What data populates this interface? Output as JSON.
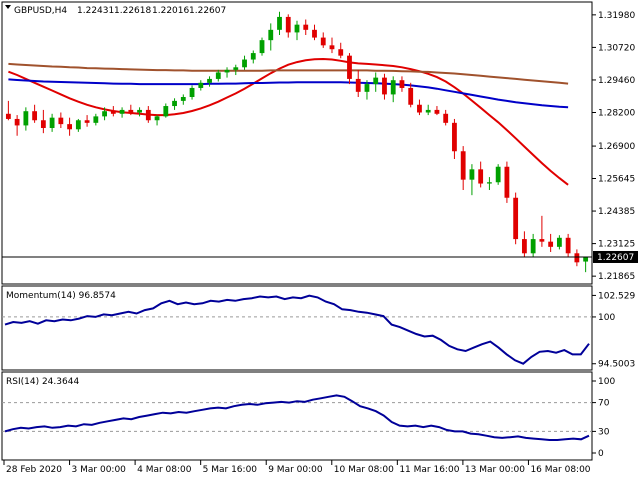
{
  "window": {
    "symbol_label": "GBPUSD,H4",
    "ohlc": {
      "open": "1.22431",
      "high": "1.22618",
      "low": "1.22016",
      "close": "1.22607"
    }
  },
  "colors": {
    "background": "#ffffff",
    "bull_candle": "#00a000",
    "bear_candle": "#e00000",
    "sma_fast": "#e00000",
    "sma_mid": "#0000c8",
    "sma_slow": "#a0522d",
    "oscillator": "#000099",
    "grid_level": "#9a9a9a",
    "price_line": "#000000",
    "price_tag_bg": "#000000",
    "price_tag_fg": "#ffffff"
  },
  "chart_data": [
    {
      "type": "candlestick",
      "ylim": [
        1.216,
        1.324
      ],
      "y_ticks": [
        "1.31980",
        "1.30720",
        "1.29460",
        "1.28200",
        "1.26900",
        "1.25645",
        "1.24385",
        "1.23125",
        "1.21865"
      ],
      "current_price_label": "1.22607",
      "current_price": 1.22607,
      "candles": [
        [
          1.2815,
          1.2865,
          1.279,
          1.2795
        ],
        [
          1.2795,
          1.281,
          1.273,
          1.277
        ],
        [
          1.277,
          1.284,
          1.275,
          1.2825
        ],
        [
          1.2825,
          1.285,
          1.278,
          1.279
        ],
        [
          1.279,
          1.283,
          1.274,
          1.276
        ],
        [
          1.276,
          1.2815,
          1.2745,
          1.28
        ],
        [
          1.28,
          1.282,
          1.276,
          1.2775
        ],
        [
          1.2775,
          1.28,
          1.273,
          1.2755
        ],
        [
          1.2755,
          1.2795,
          1.2745,
          1.279
        ],
        [
          1.279,
          1.281,
          1.2765,
          1.278
        ],
        [
          1.278,
          1.2815,
          1.277,
          1.2805
        ],
        [
          1.2805,
          1.284,
          1.279,
          1.2825
        ],
        [
          1.2825,
          1.2845,
          1.2805,
          1.2815
        ],
        [
          1.2815,
          1.284,
          1.28,
          1.283
        ],
        [
          1.283,
          1.285,
          1.281,
          1.282
        ],
        [
          1.282,
          1.284,
          1.2805,
          1.283
        ],
        [
          1.283,
          1.2845,
          1.278,
          1.279
        ],
        [
          1.279,
          1.281,
          1.277,
          1.2805
        ],
        [
          1.2805,
          1.2855,
          1.28,
          1.2845
        ],
        [
          1.2845,
          1.2875,
          1.283,
          1.2865
        ],
        [
          1.2865,
          1.289,
          1.285,
          1.288
        ],
        [
          1.288,
          1.2925,
          1.287,
          1.2915
        ],
        [
          1.2915,
          1.2945,
          1.2905,
          1.2935
        ],
        [
          1.2935,
          1.296,
          1.292,
          1.295
        ],
        [
          1.295,
          1.2985,
          1.294,
          1.2975
        ],
        [
          1.2975,
          1.2995,
          1.2955,
          1.2985
        ],
        [
          1.2985,
          1.3005,
          1.2965,
          1.2995
        ],
        [
          1.2995,
          1.304,
          1.2985,
          1.3025
        ],
        [
          1.3025,
          1.306,
          1.301,
          1.305
        ],
        [
          1.305,
          1.311,
          1.304,
          1.31
        ],
        [
          1.31,
          1.3165,
          1.306,
          1.314
        ],
        [
          1.314,
          1.321,
          1.312,
          1.319
        ],
        [
          1.319,
          1.32,
          1.311,
          1.313
        ],
        [
          1.313,
          1.3175,
          1.31,
          1.316
        ],
        [
          1.316,
          1.318,
          1.312,
          1.314
        ],
        [
          1.314,
          1.316,
          1.31,
          1.311
        ],
        [
          1.311,
          1.313,
          1.307,
          1.308
        ],
        [
          1.308,
          1.311,
          1.305,
          1.3065
        ],
        [
          1.3065,
          1.309,
          1.303,
          1.304
        ],
        [
          1.304,
          1.305,
          1.293,
          1.295
        ],
        [
          1.295,
          1.2985,
          1.288,
          1.29
        ],
        [
          1.29,
          1.2945,
          1.287,
          1.293
        ],
        [
          1.293,
          1.2975,
          1.29,
          1.2955
        ],
        [
          1.2955,
          1.297,
          1.287,
          1.289
        ],
        [
          1.289,
          1.296,
          1.286,
          1.2945
        ],
        [
          1.2945,
          1.296,
          1.29,
          1.2915
        ],
        [
          1.2915,
          1.2935,
          1.284,
          1.285
        ],
        [
          1.285,
          1.287,
          1.281,
          1.282
        ],
        [
          1.282,
          1.285,
          1.281,
          1.283
        ],
        [
          1.283,
          1.2845,
          1.281,
          1.2815
        ],
        [
          1.2815,
          1.283,
          1.277,
          1.278
        ],
        [
          1.278,
          1.2795,
          1.264,
          1.267
        ],
        [
          1.267,
          1.269,
          1.252,
          1.256
        ],
        [
          1.256,
          1.262,
          1.25,
          1.26
        ],
        [
          1.26,
          1.263,
          1.253,
          1.2545
        ],
        [
          1.2545,
          1.257,
          1.252,
          1.255
        ],
        [
          1.255,
          1.262,
          1.254,
          1.261
        ],
        [
          1.261,
          1.263,
          1.247,
          1.249
        ],
        [
          1.249,
          1.251,
          1.231,
          1.233
        ],
        [
          1.233,
          1.236,
          1.226,
          1.2275
        ],
        [
          1.2275,
          1.235,
          1.226,
          1.233
        ],
        [
          1.233,
          1.242,
          1.23,
          1.232
        ],
        [
          1.232,
          1.235,
          1.228,
          1.23
        ],
        [
          1.23,
          1.2345,
          1.229,
          1.2335
        ],
        [
          1.2335,
          1.235,
          1.226,
          1.2275
        ],
        [
          1.2275,
          1.229,
          1.2225,
          1.224
        ],
        [
          1.2243,
          1.2262,
          1.2202,
          1.2261
        ]
      ],
      "series": [
        {
          "values": [
            1.2978,
            1.2965,
            1.295,
            1.2935,
            1.292,
            1.2905,
            1.289,
            1.2875,
            1.2862,
            1.285,
            1.284,
            1.2832,
            1.2826,
            1.2821,
            1.2818,
            1.2815,
            1.2812,
            1.281,
            1.281,
            1.2813,
            1.2818,
            1.2826,
            1.2836,
            1.2848,
            1.2862,
            1.2878,
            1.2894,
            1.2912,
            1.2932,
            1.2952,
            1.2972,
            1.299,
            1.3005,
            1.3015,
            1.3022,
            1.3026,
            1.3027,
            1.3025,
            1.302,
            1.3014,
            1.301,
            1.3008,
            1.3006,
            1.3003,
            1.3,
            1.2995,
            1.2988,
            1.298,
            1.297,
            1.2957,
            1.294,
            1.2918,
            1.2893,
            1.2866,
            1.2838,
            1.281,
            1.2782,
            1.2752,
            1.272,
            1.2688,
            1.2656,
            1.2624,
            1.2594,
            1.2566,
            1.254
          ]
        },
        {
          "values": [
            1.2948,
            1.2946,
            1.2944,
            1.2942,
            1.294,
            1.2939,
            1.2938,
            1.2937,
            1.2936,
            1.2935,
            1.2934,
            1.2933,
            1.2932,
            1.2931,
            1.2931,
            1.293,
            1.293,
            1.293,
            1.293,
            1.293,
            1.293,
            1.293,
            1.293,
            1.2931,
            1.2931,
            1.2932,
            1.2932,
            1.2933,
            1.2934,
            1.2934,
            1.2935,
            1.2936,
            1.2936,
            1.2937,
            1.2937,
            1.2937,
            1.2937,
            1.2937,
            1.2937,
            1.2936,
            1.2935,
            1.2934,
            1.2933,
            1.2932,
            1.293,
            1.2928,
            1.2925,
            1.2921,
            1.2917,
            1.2912,
            1.2906,
            1.29,
            1.2894,
            1.2888,
            1.2882,
            1.2876,
            1.287,
            1.2865,
            1.286,
            1.2856,
            1.2852,
            1.2848,
            1.2845,
            1.2842,
            1.284
          ]
        },
        {
          "values": [
            1.3008,
            1.3006,
            1.3004,
            1.3002,
            1.3,
            1.2998,
            1.2997,
            1.2995,
            1.2994,
            1.2992,
            1.2991,
            1.299,
            1.2989,
            1.2988,
            1.2987,
            1.2986,
            1.2985,
            1.2984,
            1.2984,
            1.2983,
            1.2983,
            1.2982,
            1.2982,
            1.2982,
            1.2982,
            1.2982,
            1.2982,
            1.2982,
            1.2982,
            1.2982,
            1.2983,
            1.2983,
            1.2983,
            1.2983,
            1.2983,
            1.2983,
            1.2983,
            1.2983,
            1.2983,
            1.2983,
            1.2983,
            1.2983,
            1.2982,
            1.2982,
            1.2981,
            1.298,
            1.2979,
            1.2978,
            1.2977,
            1.2975,
            1.2973,
            1.2971,
            1.2968,
            1.2965,
            1.2962,
            1.2959,
            1.2956,
            1.2953,
            1.295,
            1.2947,
            1.2944,
            1.2941,
            1.2938,
            1.2935,
            1.2932
          ]
        }
      ]
    },
    {
      "type": "line",
      "title": "Momentum(14) 96.8574",
      "ylim": [
        94.0,
        103.4
      ],
      "y_ticks": [
        {
          "label": "102.529",
          "value": 102.529
        },
        {
          "label": "100",
          "value": 100.0
        },
        {
          "label": "94.5003",
          "value": 94.5003
        }
      ],
      "levels": [
        100.0
      ],
      "series": [
        {
          "values": [
            99.1,
            99.4,
            99.3,
            99.5,
            99.2,
            99.6,
            99.5,
            99.7,
            99.6,
            99.8,
            100.1,
            100.0,
            100.3,
            100.2,
            100.4,
            100.6,
            100.4,
            100.8,
            101.0,
            101.6,
            101.9,
            101.5,
            101.7,
            101.5,
            101.6,
            101.9,
            101.8,
            102.0,
            101.9,
            102.1,
            102.2,
            102.4,
            102.3,
            102.4,
            102.1,
            102.3,
            102.2,
            102.5,
            102.3,
            101.8,
            101.5,
            100.9,
            100.8,
            100.6,
            100.5,
            100.3,
            100.1,
            99.1,
            98.8,
            98.4,
            98.0,
            97.7,
            97.8,
            97.3,
            96.6,
            96.2,
            96.0,
            96.4,
            96.8,
            97.1,
            96.4,
            95.6,
            94.9,
            94.5,
            95.3,
            95.9,
            96.0,
            95.8,
            96.1,
            95.6,
            95.6,
            96.86
          ]
        }
      ]
    },
    {
      "type": "line",
      "title": "RSI(14) 24.3644",
      "ylim": [
        0,
        100
      ],
      "y_ticks": [
        {
          "label": "100",
          "value": 100
        },
        {
          "label": "70",
          "value": 70
        },
        {
          "label": "30",
          "value": 30
        },
        {
          "label": "0",
          "value": 0
        }
      ],
      "levels": [
        70,
        30
      ],
      "series": [
        {
          "values": [
            30,
            33,
            35,
            34,
            36,
            37,
            35,
            36,
            38,
            37,
            40,
            39,
            42,
            44,
            46,
            48,
            47,
            50,
            52,
            54,
            56,
            55,
            57,
            56,
            58,
            60,
            62,
            63,
            62,
            65,
            67,
            68,
            67,
            69,
            70,
            71,
            70,
            72,
            71,
            74,
            76,
            78,
            80,
            78,
            72,
            65,
            62,
            58,
            52,
            43,
            38,
            37,
            38,
            36,
            38,
            36,
            32,
            30,
            30,
            27,
            26,
            24,
            22,
            21,
            22,
            23,
            21,
            20,
            19,
            18,
            18,
            19,
            20,
            19,
            24
          ]
        }
      ]
    }
  ],
  "x_axis": {
    "labels": [
      "28 Feb 2020",
      "3 Mar 00:00",
      "4 Mar 08:00",
      "5 Mar 16:00",
      "9 Mar 00:00",
      "10 Mar 08:00",
      "11 Mar 16:00",
      "13 Mar 00:00",
      "16 Mar 08:00"
    ]
  }
}
